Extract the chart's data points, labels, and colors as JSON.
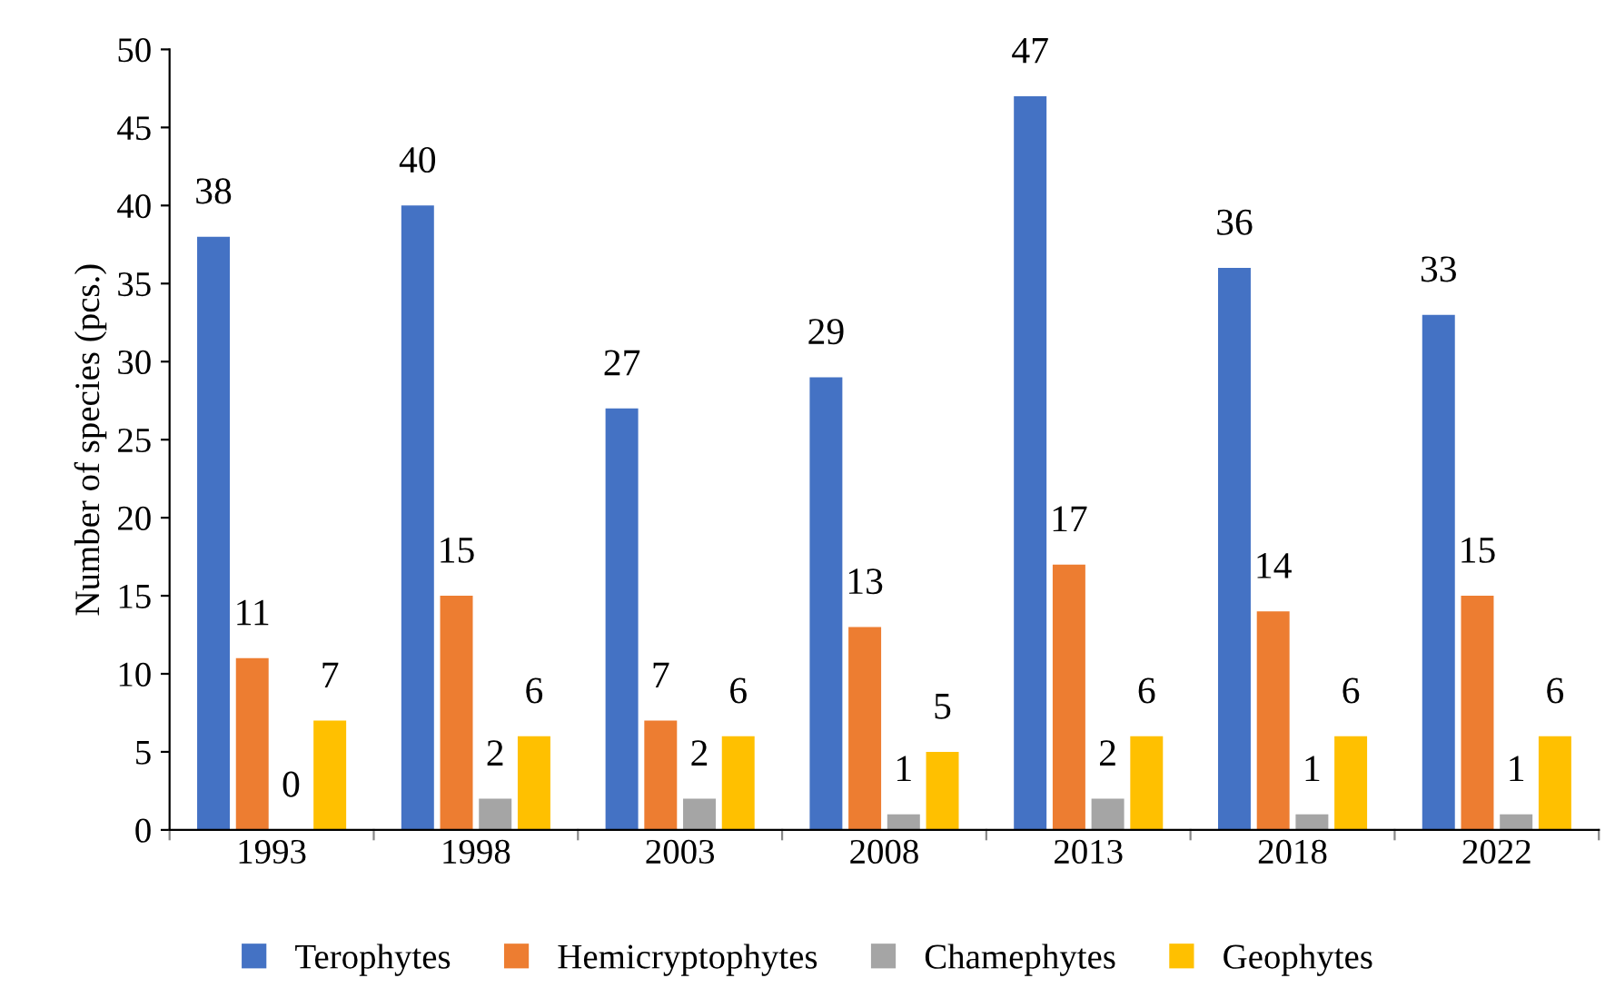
{
  "chart_data": {
    "type": "bar",
    "ylabel": "Number of species (pcs.)",
    "categories": [
      "1993",
      "1998",
      "2003",
      "2008",
      "2013",
      "2018",
      "2022"
    ],
    "series": [
      {
        "name": "Terophytes",
        "color": "#4472c4",
        "values": [
          38,
          40,
          27,
          29,
          47,
          36,
          33
        ]
      },
      {
        "name": "Hemicryptophytes",
        "color": "#ed7d31",
        "values": [
          11,
          15,
          7,
          13,
          17,
          14,
          15
        ]
      },
      {
        "name": "Chamephytes",
        "color": "#a5a5a5",
        "values": [
          0,
          2,
          2,
          1,
          2,
          1,
          1
        ]
      },
      {
        "name": "Geophytes",
        "color": "#ffc000",
        "values": [
          7,
          6,
          6,
          5,
          6,
          6,
          6
        ]
      }
    ],
    "ylim": [
      0,
      50
    ],
    "yticks": [
      0,
      5,
      10,
      15,
      20,
      25,
      30,
      35,
      40,
      45,
      50
    ],
    "data_labels": true,
    "grid": false,
    "legend": "bottom"
  }
}
